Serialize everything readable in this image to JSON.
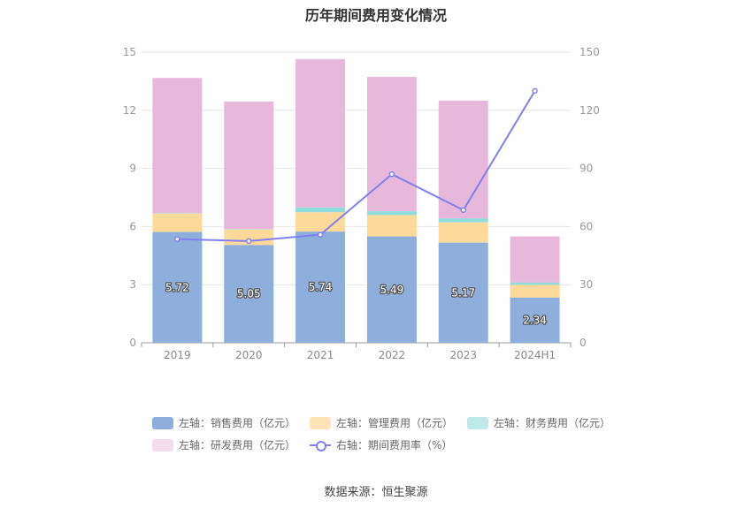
{
  "title": "历年期间费用变化情况",
  "source": "数据来源：恒生聚源",
  "colors": {
    "sales": "#8eaedc",
    "admin": "#fdd99a",
    "finance": "#8fdcdc",
    "rnd": "#e8b8da",
    "rate": "#8080f0"
  },
  "legend": {
    "sales": "左轴：销售费用（亿元）",
    "admin": "左轴：管理费用（亿元）",
    "finance": "左轴：财务费用（亿元）",
    "rnd": "左轴：研发费用（亿元）",
    "rate": "右轴：期间费用率（%）"
  },
  "chart_data": {
    "type": "bar",
    "stacked": true,
    "title": "历年期间费用变化情况",
    "categories": [
      "2019",
      "2020",
      "2021",
      "2022",
      "2023",
      "2024H1"
    ],
    "y_left": {
      "ticks": [
        0,
        3,
        6,
        9,
        12,
        15
      ],
      "ylim": [
        0,
        15
      ]
    },
    "y_right": {
      "ticks": [
        0,
        30,
        60,
        90,
        120,
        150
      ],
      "ylim": [
        0,
        150
      ]
    },
    "grid": true,
    "legend_position": "bottom",
    "series": [
      {
        "name": "左轴：销售费用（亿元）",
        "key": "sales",
        "axis": "left",
        "type": "bar",
        "values": [
          5.72,
          5.05,
          5.74,
          5.49,
          5.17,
          2.34
        ],
        "labels": [
          "5.72",
          "5.05",
          "5.74",
          "5.49",
          "5.17",
          "2.34"
        ]
      },
      {
        "name": "左轴：管理费用（亿元）",
        "key": "admin",
        "axis": "left",
        "type": "bar",
        "values": [
          0.95,
          0.8,
          1.0,
          1.1,
          1.05,
          0.65
        ]
      },
      {
        "name": "左轴：财务费用（亿元）",
        "key": "finance",
        "axis": "left",
        "type": "bar",
        "values": [
          0.02,
          0.02,
          0.25,
          0.2,
          0.2,
          0.12
        ]
      },
      {
        "name": "左轴：研发费用（亿元）",
        "key": "rnd",
        "axis": "left",
        "type": "bar",
        "values": [
          6.98,
          6.58,
          7.65,
          6.93,
          6.08,
          2.38
        ]
      },
      {
        "name": "右轴：期间费用率（%）",
        "key": "rate",
        "axis": "right",
        "type": "line",
        "values": [
          53.5,
          52.5,
          55.8,
          87.0,
          68.5,
          130.0
        ]
      }
    ]
  }
}
